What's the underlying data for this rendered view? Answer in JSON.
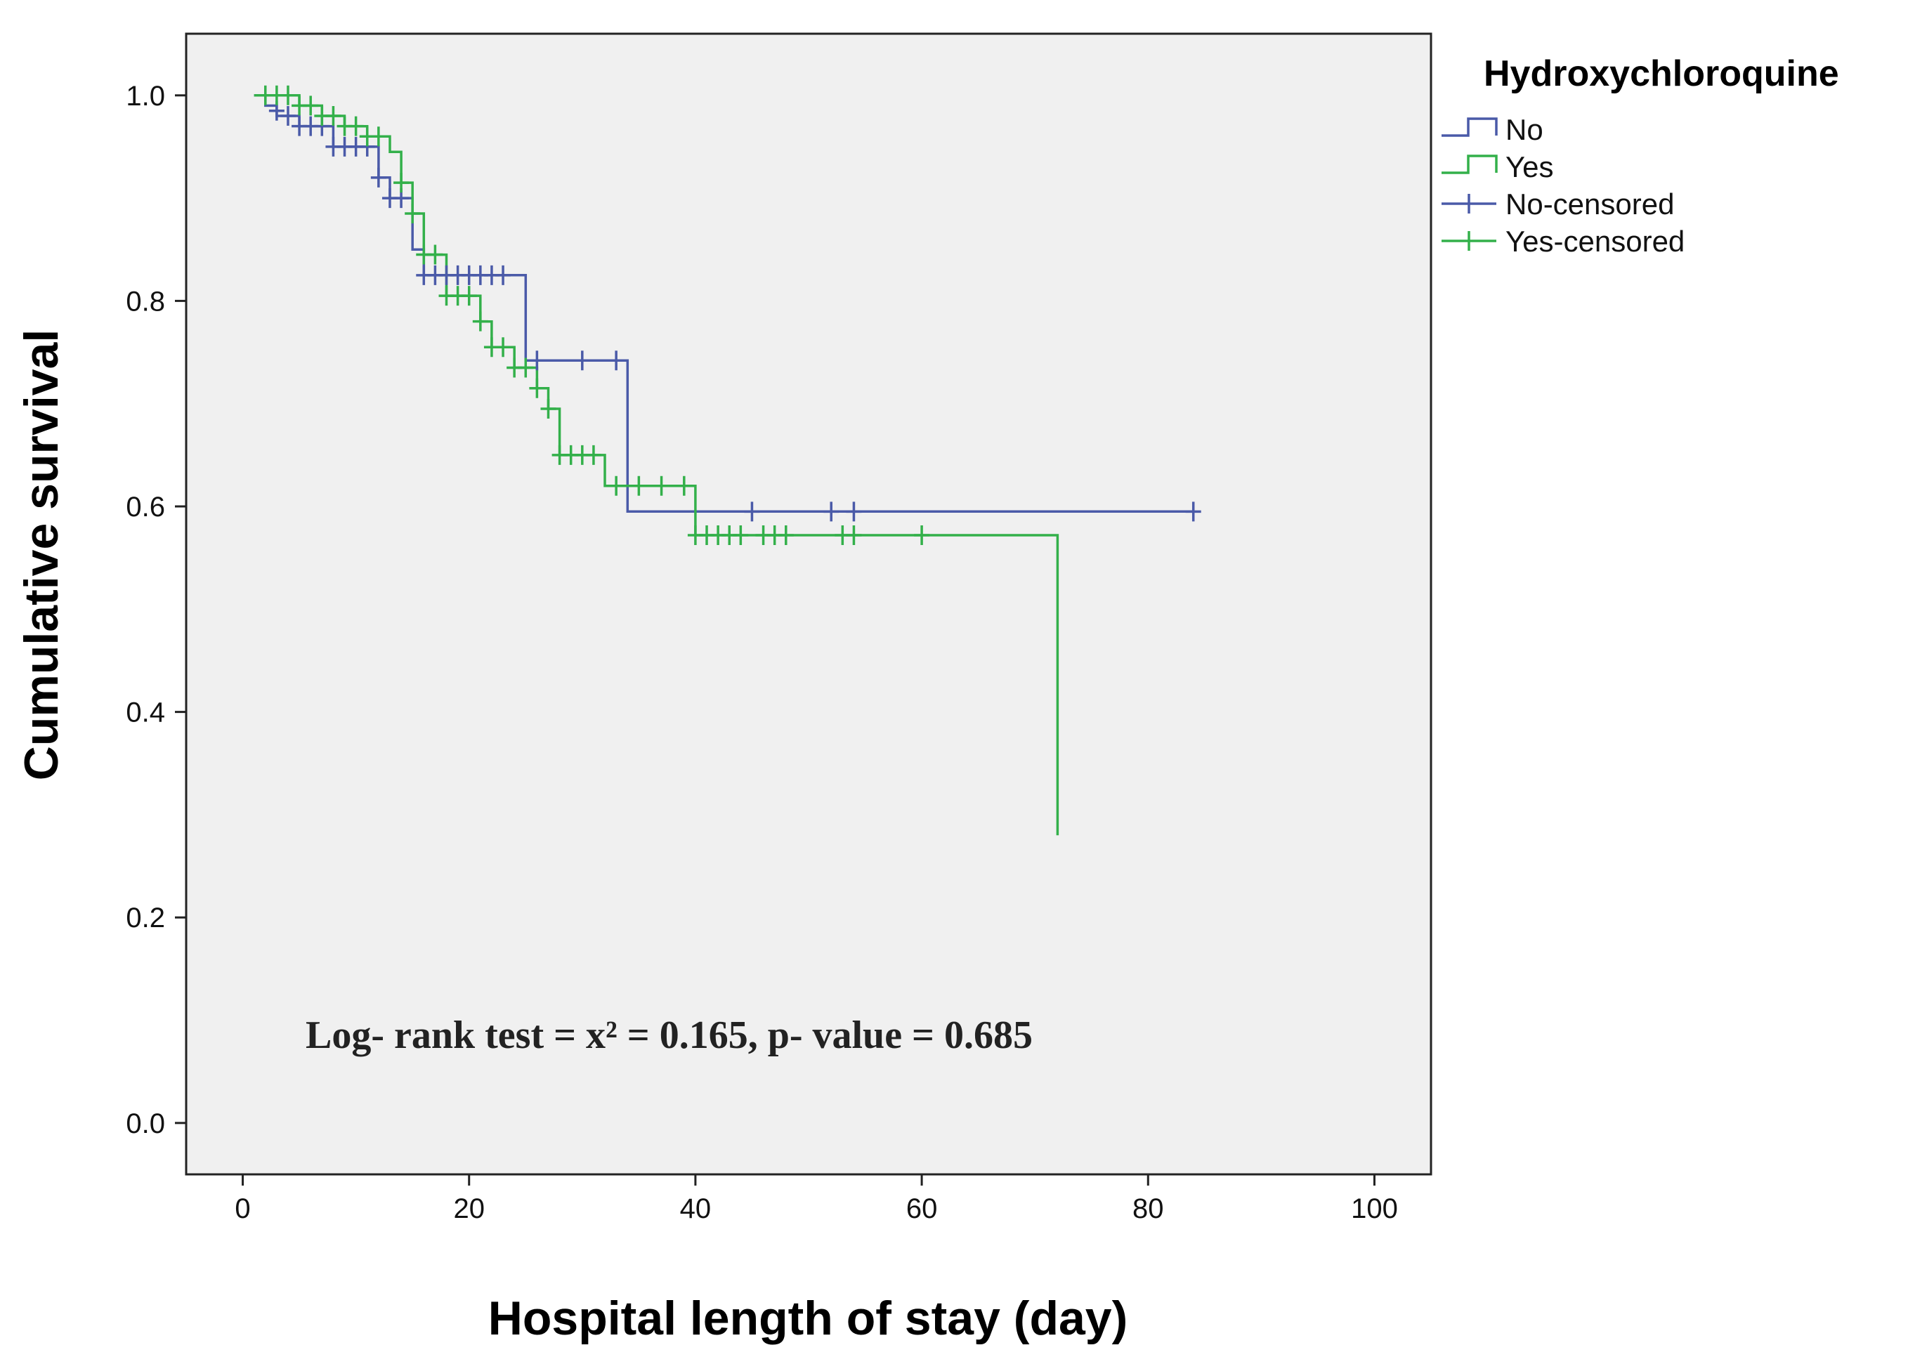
{
  "chart_data": {
    "type": "line",
    "subtype": "kaplan-meier",
    "title": "",
    "xlabel": "Hospital length of stay (day)",
    "ylabel": "Cumulative survival",
    "xlim": [
      -5,
      105
    ],
    "ylim": [
      -0.05,
      1.06
    ],
    "xticks": [
      0,
      20,
      40,
      60,
      80,
      100
    ],
    "xtick_labels": [
      "0",
      "20",
      "40",
      "60",
      "80",
      "100"
    ],
    "yticks": [
      0.0,
      0.2,
      0.4,
      0.6,
      0.8,
      1.0
    ],
    "ytick_labels": [
      "0.0",
      "0.2",
      "0.4",
      "0.6",
      "0.8",
      "1.0"
    ],
    "grid": false,
    "legend_position": "right",
    "legend": {
      "title": "Hydroxychloroquine",
      "entries": [
        {
          "label": "No",
          "kind": "step",
          "series": "No"
        },
        {
          "label": "Yes",
          "kind": "step",
          "series": "Yes"
        },
        {
          "label": "No-censored",
          "kind": "censor",
          "series": "No"
        },
        {
          "label": "Yes-censored",
          "kind": "censor",
          "series": "Yes"
        }
      ]
    },
    "annotation": "Log- rank test = x² = 0.165, p- value = 0.685",
    "series": [
      {
        "name": "No",
        "color": "#4a5aa8",
        "steps": [
          [
            1,
            1.0
          ],
          [
            2,
            0.99
          ],
          [
            3,
            0.98
          ],
          [
            5,
            0.97
          ],
          [
            8,
            0.95
          ],
          [
            12,
            0.92
          ],
          [
            13,
            0.9
          ],
          [
            15,
            0.85
          ],
          [
            16,
            0.825
          ],
          [
            25,
            0.742
          ],
          [
            34,
            0.595
          ],
          [
            84,
            0.595
          ]
        ],
        "censored": [
          [
            3,
            0.985
          ],
          [
            4,
            0.98
          ],
          [
            5,
            0.97
          ],
          [
            6,
            0.97
          ],
          [
            7,
            0.97
          ],
          [
            8,
            0.95
          ],
          [
            9,
            0.95
          ],
          [
            10,
            0.95
          ],
          [
            11,
            0.95
          ],
          [
            12,
            0.92
          ],
          [
            13,
            0.9
          ],
          [
            14,
            0.9
          ],
          [
            16,
            0.825
          ],
          [
            17,
            0.825
          ],
          [
            18,
            0.825
          ],
          [
            19,
            0.825
          ],
          [
            20,
            0.825
          ],
          [
            21,
            0.825
          ],
          [
            22,
            0.825
          ],
          [
            23,
            0.825
          ],
          [
            26,
            0.742
          ],
          [
            30,
            0.742
          ],
          [
            33,
            0.742
          ],
          [
            45,
            0.595
          ],
          [
            52,
            0.595
          ],
          [
            54,
            0.595
          ],
          [
            84,
            0.595
          ]
        ]
      },
      {
        "name": "Yes",
        "color": "#33b04a",
        "steps": [
          [
            1,
            1.0
          ],
          [
            5,
            0.99
          ],
          [
            7,
            0.98
          ],
          [
            9,
            0.97
          ],
          [
            11,
            0.96
          ],
          [
            13,
            0.945
          ],
          [
            14,
            0.915
          ],
          [
            15,
            0.885
          ],
          [
            16,
            0.845
          ],
          [
            18,
            0.805
          ],
          [
            21,
            0.78
          ],
          [
            22,
            0.755
          ],
          [
            24,
            0.735
          ],
          [
            26,
            0.715
          ],
          [
            27,
            0.695
          ],
          [
            28,
            0.65
          ],
          [
            32,
            0.62
          ],
          [
            40,
            0.572
          ],
          [
            72,
            0.572
          ],
          [
            72,
            0.28
          ]
        ],
        "censored": [
          [
            2,
            1.0
          ],
          [
            3,
            1.0
          ],
          [
            4,
            1.0
          ],
          [
            5,
            0.99
          ],
          [
            6,
            0.99
          ],
          [
            7,
            0.98
          ],
          [
            8,
            0.98
          ],
          [
            9,
            0.97
          ],
          [
            10,
            0.97
          ],
          [
            11,
            0.96
          ],
          [
            12,
            0.96
          ],
          [
            14,
            0.915
          ],
          [
            15,
            0.885
          ],
          [
            16,
            0.845
          ],
          [
            17,
            0.845
          ],
          [
            18,
            0.805
          ],
          [
            19,
            0.805
          ],
          [
            20,
            0.805
          ],
          [
            21,
            0.78
          ],
          [
            22,
            0.755
          ],
          [
            23,
            0.755
          ],
          [
            24,
            0.735
          ],
          [
            25,
            0.735
          ],
          [
            26,
            0.715
          ],
          [
            27,
            0.695
          ],
          [
            28,
            0.65
          ],
          [
            29,
            0.65
          ],
          [
            30,
            0.65
          ],
          [
            31,
            0.65
          ],
          [
            33,
            0.62
          ],
          [
            35,
            0.62
          ],
          [
            37,
            0.62
          ],
          [
            39,
            0.62
          ],
          [
            40,
            0.572
          ],
          [
            41,
            0.572
          ],
          [
            42,
            0.572
          ],
          [
            43,
            0.572
          ],
          [
            44,
            0.572
          ],
          [
            46,
            0.572
          ],
          [
            47,
            0.572
          ],
          [
            48,
            0.572
          ],
          [
            53,
            0.572
          ],
          [
            54,
            0.572
          ],
          [
            60,
            0.572
          ]
        ]
      }
    ]
  }
}
